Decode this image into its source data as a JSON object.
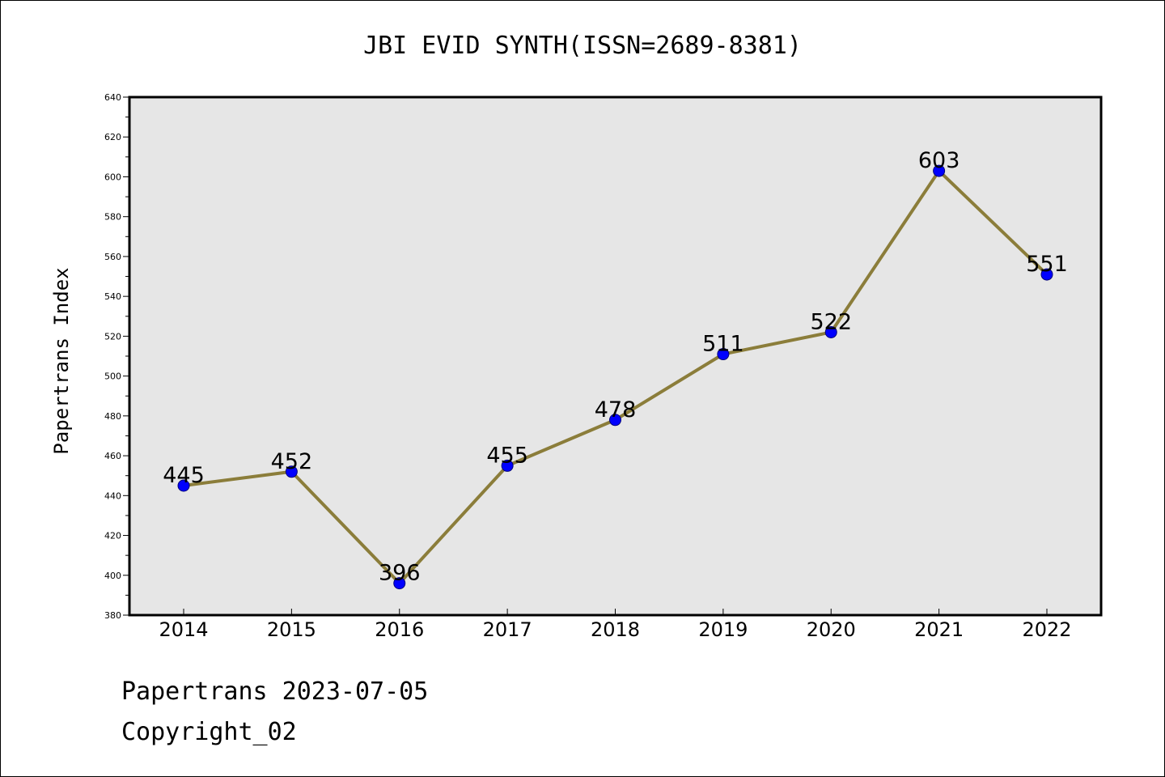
{
  "chart_data": {
    "type": "line",
    "title": "JBI EVID SYNTH(ISSN=2689-8381)",
    "xlabel": "",
    "ylabel": "Papertrans Index",
    "categories": [
      "2014",
      "2015",
      "2016",
      "2017",
      "2018",
      "2019",
      "2020",
      "2021",
      "2022"
    ],
    "series": [
      {
        "values": [
          445,
          452,
          396,
          455,
          478,
          511,
          522,
          603,
          551
        ]
      }
    ],
    "data_labels": [
      "445",
      "452",
      "396",
      "455",
      "478",
      "511",
      "522",
      "603",
      "551"
    ],
    "ylim": [
      380,
      640
    ],
    "yticks": [
      380,
      400,
      420,
      440,
      460,
      480,
      500,
      520,
      540,
      560,
      580,
      600,
      620,
      640
    ],
    "grid": false,
    "legend": "none",
    "colors": {
      "line": "#8b7d3a",
      "marker": "#0000ff",
      "plot_background": "#e6e6e6"
    }
  },
  "footer": {
    "line1": "Papertrans 2023-07-05",
    "line2": "Copyright_02"
  }
}
